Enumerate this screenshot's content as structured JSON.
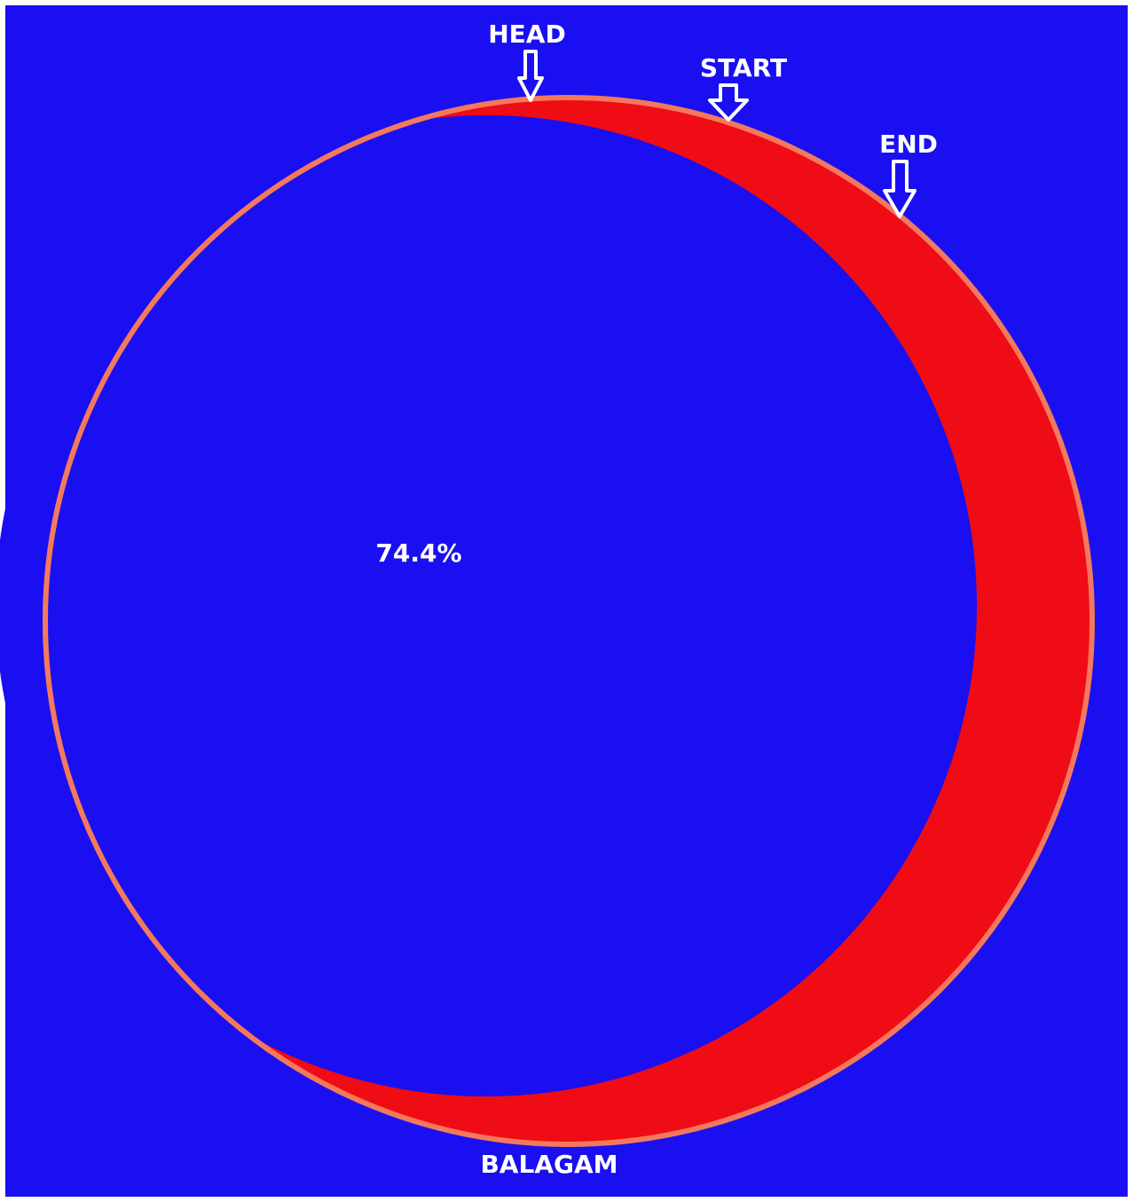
{
  "diagram": {
    "colors": {
      "background": "#1a0ff0",
      "disc": "#1a0ff0",
      "crescent": "#f00c14",
      "rim": "#f4795c",
      "text": "#ffffff",
      "frame": "#ffffff"
    },
    "labels": {
      "head": "HEAD",
      "start": "START",
      "end": "END",
      "percentage": "74.4%",
      "bottom": "BALAGAM"
    },
    "markers": [
      {
        "name": "head-arrow-icon",
        "label": "HEAD"
      },
      {
        "name": "start-arrow-icon",
        "label": "START"
      },
      {
        "name": "end-arrow-icon",
        "label": "END"
      }
    ],
    "coverage_percent": 74.4
  }
}
